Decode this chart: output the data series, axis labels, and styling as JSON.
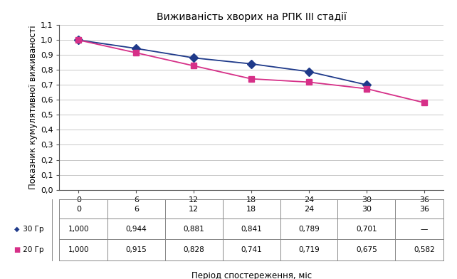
{
  "title": "Виживаність хворих на РПК ІІІ стадії",
  "xlabel": "Період спостереження, міс",
  "ylabel": "Показник кумулятивної виживаності",
  "x": [
    0,
    6,
    12,
    18,
    24,
    30,
    36
  ],
  "series_30Gr": [
    1.0,
    0.944,
    0.881,
    0.841,
    0.789,
    0.701,
    null
  ],
  "series_20Gr": [
    1.0,
    0.915,
    0.828,
    0.741,
    0.719,
    0.675,
    0.582
  ],
  "color_30Gr": "#1F3A8A",
  "color_20Gr": "#D63088",
  "ylim": [
    0.0,
    1.1
  ],
  "yticks": [
    0.0,
    0.1,
    0.2,
    0.3,
    0.4,
    0.5,
    0.6,
    0.7,
    0.8,
    0.9,
    1.0,
    1.1
  ],
  "xticks": [
    0,
    6,
    12,
    18,
    24,
    30,
    36
  ],
  "label_30Gr": "30 Гр",
  "label_20Gr": "20 Гр",
  "table_row1": [
    "1,000",
    "0,944",
    "0,881",
    "0,841",
    "0,789",
    "0,701",
    "—"
  ],
  "table_row2": [
    "1,000",
    "0,915",
    "0,828",
    "0,741",
    "0,719",
    "0,675",
    "0,582"
  ],
  "background_color": "#FFFFFF",
  "grid_color": "#C8C8C8",
  "title_fontsize": 10,
  "axis_fontsize": 8.5,
  "tick_fontsize": 8,
  "table_fontsize": 7.5
}
